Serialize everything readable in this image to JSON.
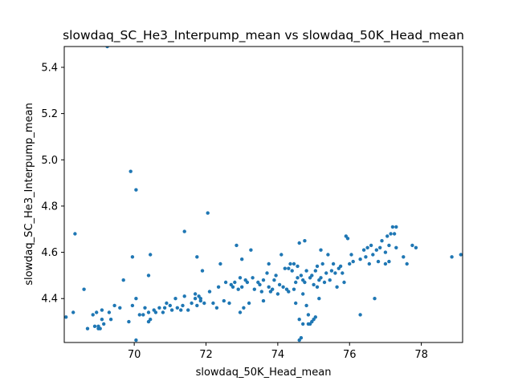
{
  "chart_data": {
    "type": "scatter",
    "title": "slowdaq_SC_He3_Interpump_mean vs slowdaq_50K_Head_mean",
    "xlabel": "slowdaq_50K_Head_mean",
    "ylabel": "slowdaq_SC_He3_Interpump_mean",
    "xlim": [
      68.05,
      79.15
    ],
    "ylim": [
      4.21,
      5.49
    ],
    "xticks": [
      70,
      72,
      74,
      76,
      78
    ],
    "xtick_labels": [
      "70",
      "72",
      "74",
      "76",
      "78"
    ],
    "yticks": [
      4.4,
      4.6,
      4.8,
      5.0,
      5.2,
      5.4
    ],
    "ytick_labels": [
      "4.4",
      "4.6",
      "4.8",
      "5.0",
      "5.2",
      "5.4"
    ],
    "grid": false,
    "legend": "none",
    "marker_color": "#1f77b4",
    "points": [
      [
        68.1,
        4.32
      ],
      [
        68.3,
        4.34
      ],
      [
        68.35,
        4.68
      ],
      [
        68.6,
        4.44
      ],
      [
        68.7,
        4.27
      ],
      [
        68.85,
        4.33
      ],
      [
        68.9,
        4.28
      ],
      [
        68.95,
        4.34
      ],
      [
        69.0,
        4.28
      ],
      [
        69.05,
        4.27
      ],
      [
        69.0,
        4.27
      ],
      [
        69.1,
        4.35
      ],
      [
        69.1,
        4.31
      ],
      [
        69.15,
        4.29
      ],
      [
        69.25,
        5.49
      ],
      [
        69.3,
        4.34
      ],
      [
        69.35,
        4.31
      ],
      [
        69.45,
        4.37
      ],
      [
        69.6,
        4.36
      ],
      [
        69.7,
        4.48
      ],
      [
        69.85,
        4.3
      ],
      [
        69.9,
        4.95
      ],
      [
        69.95,
        4.58
      ],
      [
        69.95,
        4.37
      ],
      [
        70.05,
        4.22
      ],
      [
        70.05,
        4.4
      ],
      [
        70.05,
        4.87
      ],
      [
        70.15,
        4.33
      ],
      [
        70.25,
        4.33
      ],
      [
        70.3,
        4.36
      ],
      [
        70.4,
        4.34
      ],
      [
        70.4,
        4.5
      ],
      [
        70.4,
        4.3
      ],
      [
        70.45,
        4.59
      ],
      [
        70.45,
        4.31
      ],
      [
        70.55,
        4.35
      ],
      [
        70.6,
        4.34
      ],
      [
        70.7,
        4.36
      ],
      [
        70.8,
        4.34
      ],
      [
        70.85,
        4.36
      ],
      [
        70.9,
        4.38
      ],
      [
        71.0,
        4.37
      ],
      [
        71.05,
        4.35
      ],
      [
        71.15,
        4.4
      ],
      [
        71.2,
        4.36
      ],
      [
        71.3,
        4.35
      ],
      [
        71.35,
        4.37
      ],
      [
        71.4,
        4.41
      ],
      [
        71.4,
        4.69
      ],
      [
        71.5,
        4.35
      ],
      [
        71.6,
        4.38
      ],
      [
        71.7,
        4.4
      ],
      [
        71.7,
        4.42
      ],
      [
        71.75,
        4.37
      ],
      [
        71.75,
        4.58
      ],
      [
        71.8,
        4.41
      ],
      [
        71.85,
        4.4
      ],
      [
        71.9,
        4.52
      ],
      [
        71.85,
        4.39
      ],
      [
        71.95,
        4.38
      ],
      [
        72.05,
        4.77
      ],
      [
        72.1,
        4.43
      ],
      [
        72.2,
        4.38
      ],
      [
        72.3,
        4.36
      ],
      [
        72.35,
        4.45
      ],
      [
        72.4,
        4.55
      ],
      [
        72.5,
        4.39
      ],
      [
        72.55,
        4.47
      ],
      [
        72.65,
        4.38
      ],
      [
        72.7,
        4.46
      ],
      [
        72.75,
        4.45
      ],
      [
        72.8,
        4.47
      ],
      [
        72.85,
        4.63
      ],
      [
        72.9,
        4.44
      ],
      [
        72.95,
        4.34
      ],
      [
        72.95,
        4.49
      ],
      [
        73.0,
        4.57
      ],
      [
        73.0,
        4.45
      ],
      [
        73.05,
        4.36
      ],
      [
        73.1,
        4.48
      ],
      [
        73.15,
        4.47
      ],
      [
        73.2,
        4.38
      ],
      [
        73.25,
        4.61
      ],
      [
        73.3,
        4.49
      ],
      [
        73.35,
        4.44
      ],
      [
        73.45,
        4.47
      ],
      [
        73.5,
        4.46
      ],
      [
        73.55,
        4.43
      ],
      [
        73.6,
        4.48
      ],
      [
        73.6,
        4.39
      ],
      [
        73.7,
        4.51
      ],
      [
        73.75,
        4.45
      ],
      [
        73.75,
        4.55
      ],
      [
        73.8,
        4.43
      ],
      [
        73.85,
        4.44
      ],
      [
        73.9,
        4.48
      ],
      [
        73.95,
        4.5
      ],
      [
        74.0,
        4.42
      ],
      [
        74.05,
        4.46
      ],
      [
        74.1,
        4.59
      ],
      [
        74.15,
        4.45
      ],
      [
        74.2,
        4.53
      ],
      [
        74.25,
        4.44
      ],
      [
        74.3,
        4.43
      ],
      [
        74.3,
        4.53
      ],
      [
        74.35,
        4.55
      ],
      [
        74.4,
        4.52
      ],
      [
        74.45,
        4.44
      ],
      [
        74.45,
        4.55
      ],
      [
        74.5,
        4.47
      ],
      [
        74.5,
        4.38
      ],
      [
        74.55,
        4.49
      ],
      [
        74.55,
        4.54
      ],
      [
        74.6,
        4.64
      ],
      [
        74.6,
        4.31
      ],
      [
        74.6,
        4.22
      ],
      [
        74.65,
        4.5
      ],
      [
        74.65,
        4.23
      ],
      [
        74.7,
        4.48
      ],
      [
        74.7,
        4.42
      ],
      [
        74.7,
        4.29
      ],
      [
        74.75,
        4.65
      ],
      [
        74.75,
        4.47
      ],
      [
        74.8,
        4.52
      ],
      [
        74.8,
        4.37
      ],
      [
        74.85,
        4.33
      ],
      [
        74.85,
        4.29
      ],
      [
        74.9,
        4.49
      ],
      [
        74.9,
        4.29
      ],
      [
        74.95,
        4.3
      ],
      [
        74.95,
        4.5
      ],
      [
        75.0,
        4.31
      ],
      [
        75.0,
        4.46
      ],
      [
        75.05,
        4.32
      ],
      [
        75.05,
        4.52
      ],
      [
        75.1,
        4.45
      ],
      [
        75.1,
        4.54
      ],
      [
        75.15,
        4.48
      ],
      [
        75.15,
        4.4
      ],
      [
        75.2,
        4.61
      ],
      [
        75.2,
        4.49
      ],
      [
        75.25,
        4.55
      ],
      [
        75.3,
        4.47
      ],
      [
        75.35,
        4.51
      ],
      [
        75.4,
        4.59
      ],
      [
        75.45,
        4.48
      ],
      [
        75.5,
        4.52
      ],
      [
        75.55,
        4.55
      ],
      [
        75.6,
        4.51
      ],
      [
        75.65,
        4.45
      ],
      [
        75.7,
        4.53
      ],
      [
        75.75,
        4.54
      ],
      [
        75.8,
        4.51
      ],
      [
        75.85,
        4.47
      ],
      [
        75.9,
        4.67
      ],
      [
        75.95,
        4.66
      ],
      [
        76.0,
        4.55
      ],
      [
        76.05,
        4.59
      ],
      [
        76.1,
        4.56
      ],
      [
        76.3,
        4.33
      ],
      [
        76.3,
        4.57
      ],
      [
        76.4,
        4.61
      ],
      [
        76.45,
        4.58
      ],
      [
        76.5,
        4.62
      ],
      [
        76.55,
        4.55
      ],
      [
        76.6,
        4.63
      ],
      [
        76.65,
        4.59
      ],
      [
        76.7,
        4.4
      ],
      [
        76.75,
        4.61
      ],
      [
        76.8,
        4.56
      ],
      [
        76.85,
        4.62
      ],
      [
        76.9,
        4.65
      ],
      [
        77.0,
        4.6
      ],
      [
        77.0,
        4.55
      ],
      [
        77.05,
        4.67
      ],
      [
        77.1,
        4.63
      ],
      [
        77.1,
        4.56
      ],
      [
        77.15,
        4.68
      ],
      [
        77.2,
        4.71
      ],
      [
        77.25,
        4.68
      ],
      [
        77.3,
        4.62
      ],
      [
        77.3,
        4.71
      ],
      [
        77.5,
        4.58
      ],
      [
        77.6,
        4.55
      ],
      [
        77.75,
        4.63
      ],
      [
        77.85,
        4.62
      ],
      [
        78.85,
        4.58
      ],
      [
        79.1,
        4.59
      ]
    ]
  }
}
